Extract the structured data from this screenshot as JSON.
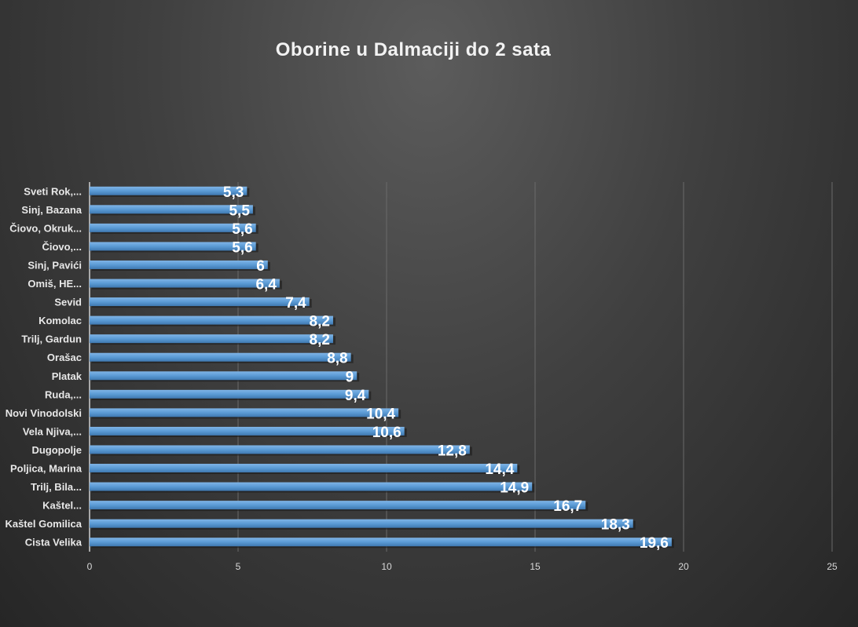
{
  "chart_data": {
    "type": "bar",
    "orientation": "horizontal",
    "title": "Oborine u Dalmaciji do 2 sata",
    "xlabel": "",
    "ylabel": "",
    "xlim": [
      0,
      25
    ],
    "xticks": [
      0,
      5,
      10,
      15,
      20,
      25
    ],
    "grid": true,
    "categories": [
      "Sveti Rok,...",
      "Sinj, Bazana",
      "Čiovo, Okruk...",
      "Čiovo,...",
      "Sinj, Pavići",
      "Omiš, HE...",
      "Sevid",
      "Komolac",
      "Trilj, Gardun",
      "Orašac",
      "Platak",
      "Ruda,...",
      "Novi Vinodolski",
      "Vela Njiva,...",
      "Dugopolje",
      "Poljica, Marina",
      "Trilj, Bila...",
      "Kaštel...",
      "Kaštel Gomilica",
      "Cista Velika"
    ],
    "values": [
      5.3,
      5.5,
      5.6,
      5.6,
      6,
      6.4,
      7.4,
      8.2,
      8.2,
      8.8,
      9,
      9.4,
      10.4,
      10.6,
      12.8,
      14.4,
      14.9,
      16.7,
      18.3,
      19.6
    ],
    "data_labels": [
      "5,3",
      "5,5",
      "5,6",
      "5,6",
      "6",
      "6,4",
      "7,4",
      "8,2",
      "8,2",
      "8,8",
      "9",
      "9,4",
      "10,4",
      "10,6",
      "12,8",
      "14,4",
      "14,9",
      "16,7",
      "18,3",
      "19,6"
    ],
    "bar_color": "#5b9bd5"
  }
}
